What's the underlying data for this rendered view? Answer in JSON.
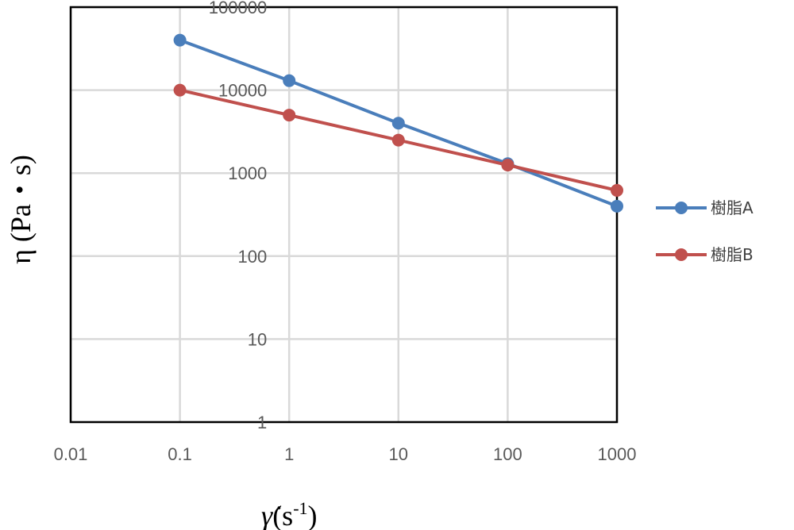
{
  "chart_data": {
    "type": "line",
    "x_scale": "log",
    "y_scale": "log",
    "xlim": [
      0.01,
      1000
    ],
    "ylim": [
      1,
      100000
    ],
    "x_ticks": [
      "0.01",
      "0.1",
      "1",
      "10",
      "100",
      "1000"
    ],
    "y_ticks": [
      "1",
      "10",
      "100",
      "1000",
      "10000",
      "100000"
    ],
    "xlabel": "γ̇(s-1)",
    "xlabel_symbol": "γ̇",
    "xlabel_unit_open": "(s",
    "xlabel_unit_exp": "-1",
    "xlabel_unit_close": ")",
    "ylabel": "η (Pa・s)",
    "grid": true,
    "legend_position": "right",
    "series": [
      {
        "name": "樹脂A",
        "color": "#4a7ebb",
        "x": [
          0.1,
          1,
          10,
          100,
          1000
        ],
        "y": [
          40000,
          13000,
          4000,
          1300,
          400
        ]
      },
      {
        "name": "樹脂B",
        "color": "#c0504d",
        "x": [
          0.1,
          1,
          10,
          100,
          1000
        ],
        "y": [
          10000,
          5000,
          2500,
          1250,
          620
        ]
      }
    ]
  }
}
